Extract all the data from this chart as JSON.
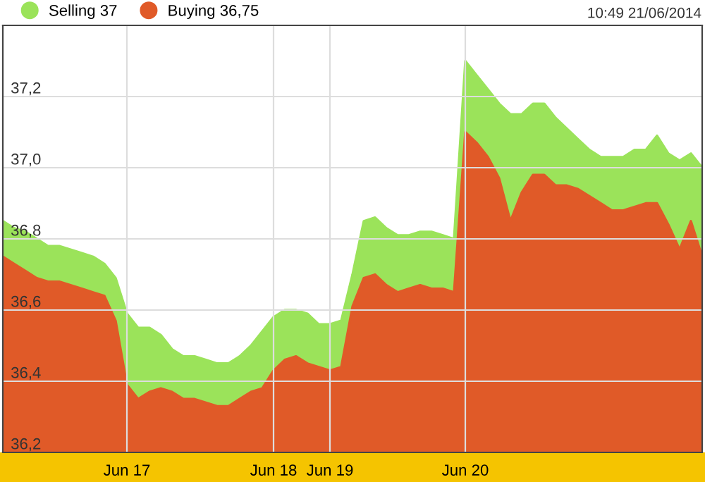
{
  "chart_data": {
    "type": "area",
    "annotations": [
      "10:49 21/06/2014"
    ],
    "categories": [
      null,
      null,
      null,
      null,
      null,
      null,
      null,
      null,
      null,
      null,
      null,
      "Jun 17",
      null,
      null,
      null,
      null,
      null,
      null,
      null,
      null,
      null,
      null,
      null,
      null,
      "Jun 18",
      null,
      null,
      null,
      null,
      "Jun 19",
      null,
      null,
      null,
      null,
      null,
      null,
      null,
      null,
      null,
      null,
      null,
      "Jun 20",
      null,
      null,
      null,
      null,
      null,
      null,
      null,
      null,
      null,
      null,
      null,
      null,
      null,
      null,
      null,
      null,
      null,
      null,
      null,
      null,
      null
    ],
    "ylim": [
      36.2,
      37.4
    ],
    "yticks": [
      {
        "value": 36.2,
        "label": "36,2"
      },
      {
        "value": 36.4,
        "label": "36,4"
      },
      {
        "value": 36.6,
        "label": "36,6"
      },
      {
        "value": 36.8,
        "label": "36,8"
      },
      {
        "value": 37.0,
        "label": "37,0"
      },
      {
        "value": 37.2,
        "label": "37,2"
      }
    ],
    "grid": true,
    "legend": "top left",
    "series": [
      {
        "name": "Selling 37",
        "color": "#9be35a",
        "values": [
          36.85,
          36.83,
          36.82,
          36.8,
          36.78,
          36.78,
          36.77,
          36.76,
          36.75,
          36.73,
          36.69,
          36.59,
          36.55,
          36.55,
          36.53,
          36.49,
          36.47,
          36.47,
          36.46,
          36.45,
          36.45,
          36.47,
          36.5,
          36.54,
          36.58,
          36.6,
          36.6,
          36.59,
          36.56,
          36.56,
          36.57,
          36.7,
          36.85,
          36.86,
          36.83,
          36.81,
          36.81,
          36.82,
          36.82,
          36.81,
          36.8,
          37.3,
          37.26,
          37.22,
          37.18,
          37.15,
          37.15,
          37.18,
          37.18,
          37.14,
          37.11,
          37.08,
          37.05,
          37.03,
          37.03,
          37.03,
          37.05,
          37.05,
          37.09,
          37.04,
          37.02,
          37.04,
          37.0
        ]
      },
      {
        "name": "Buying 36,75",
        "color": "#e05a28",
        "values": [
          36.75,
          36.73,
          36.71,
          36.69,
          36.68,
          36.68,
          36.67,
          36.66,
          36.65,
          36.64,
          36.57,
          36.39,
          36.35,
          36.37,
          36.38,
          36.37,
          36.35,
          36.35,
          36.34,
          36.33,
          36.33,
          36.35,
          36.37,
          36.38,
          36.43,
          36.46,
          36.47,
          36.45,
          36.44,
          36.43,
          36.44,
          36.61,
          36.69,
          36.7,
          36.67,
          36.65,
          36.66,
          36.67,
          36.66,
          36.66,
          36.65,
          37.1,
          37.07,
          37.03,
          36.97,
          36.85,
          36.93,
          36.98,
          36.98,
          36.95,
          36.95,
          36.94,
          36.92,
          36.9,
          36.88,
          36.88,
          36.89,
          36.9,
          36.9,
          36.84,
          36.77,
          36.85,
          36.75
        ]
      }
    ]
  }
}
